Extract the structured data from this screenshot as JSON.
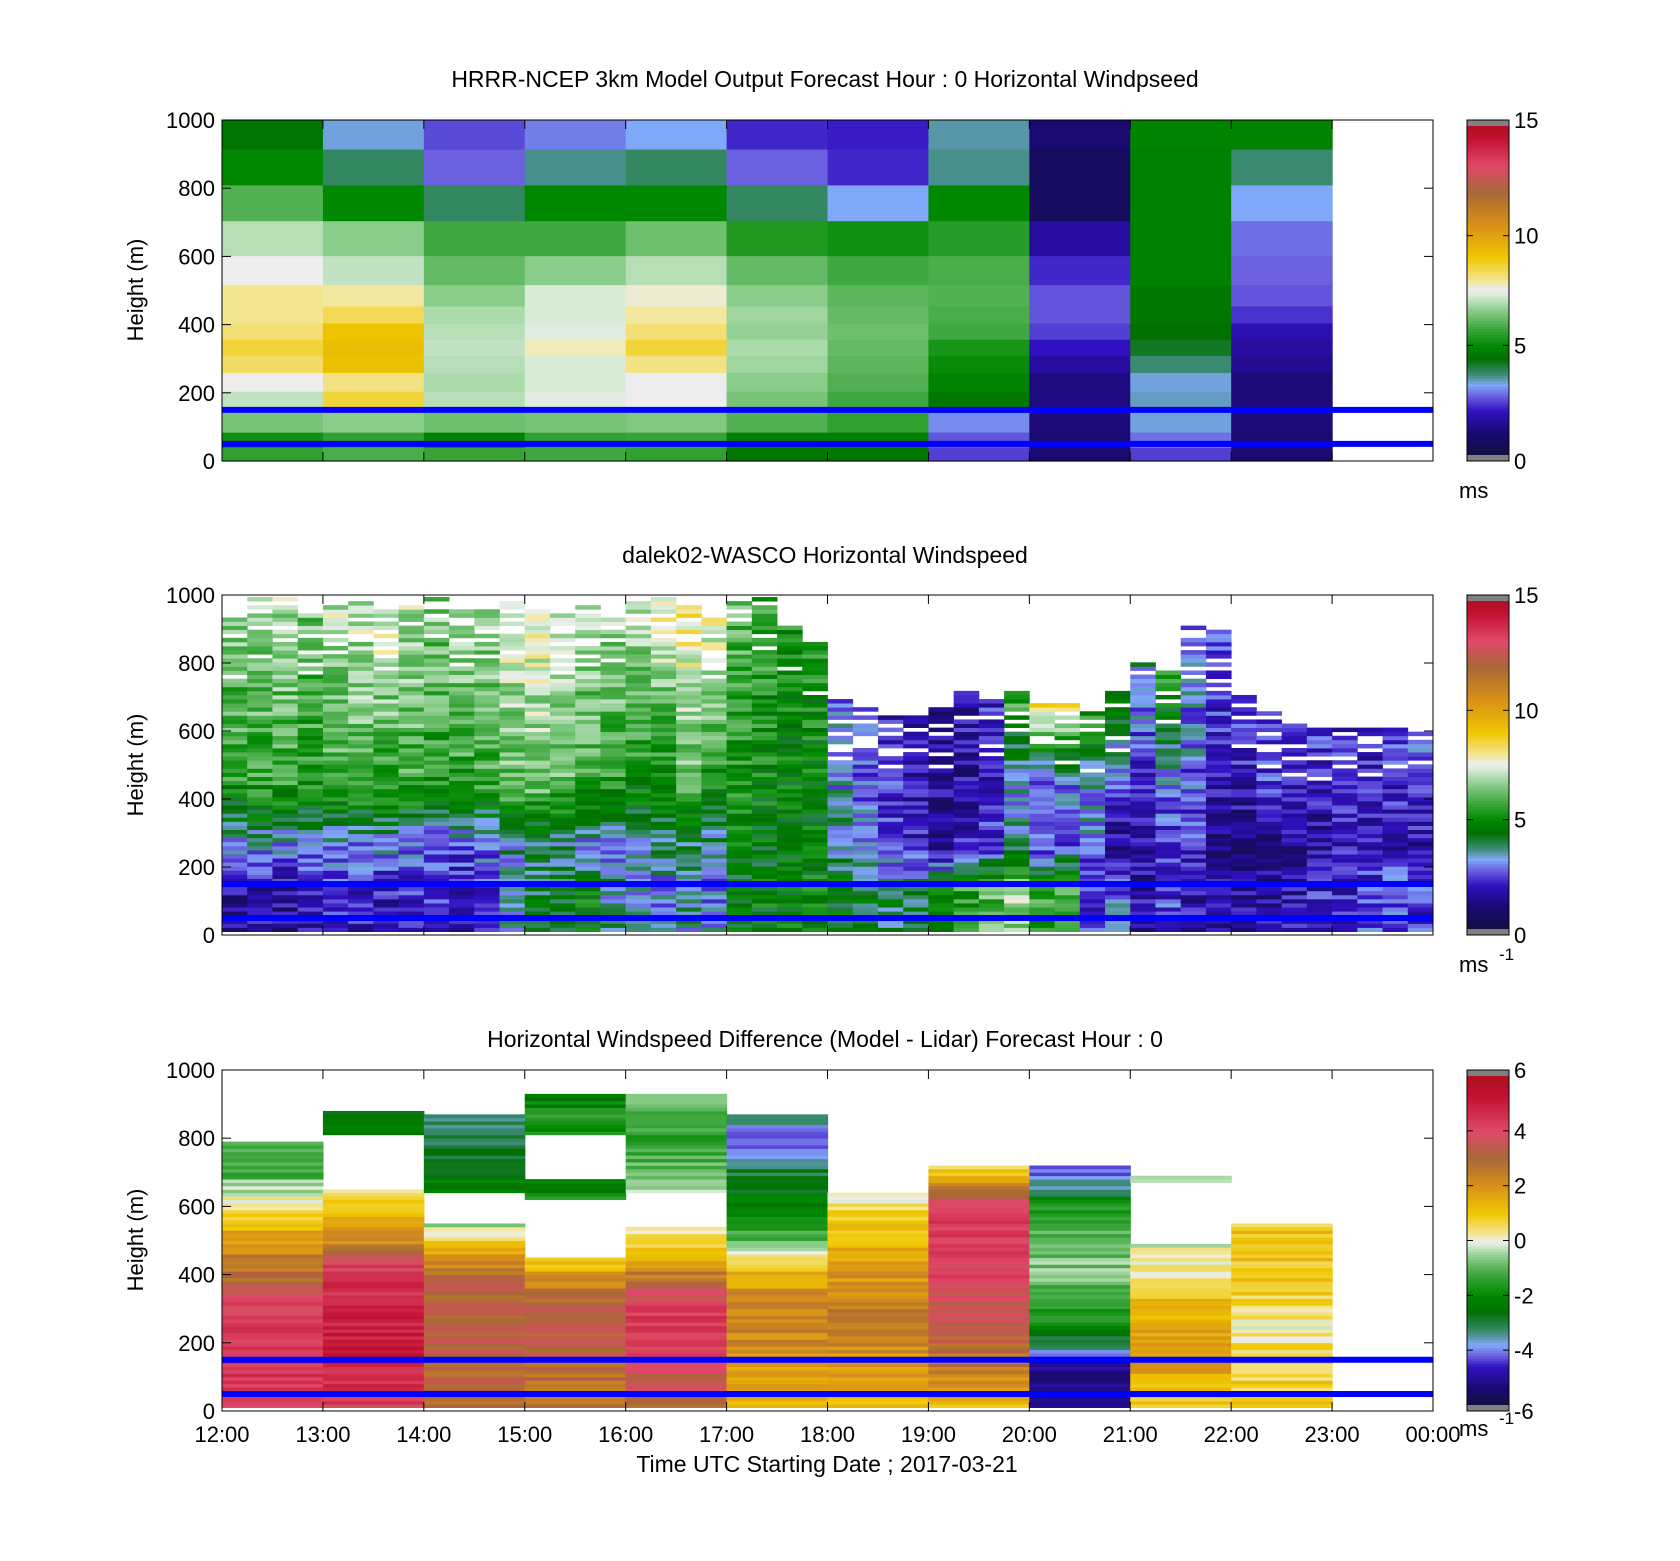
{
  "figure": {
    "xlabel": "Time UTC  Starting Date ; 2017-03-21",
    "xticks": [
      "12:00",
      "13:00",
      "14:00",
      "15:00",
      "16:00",
      "17:00",
      "18:00",
      "19:00",
      "20:00",
      "21:00",
      "22:00",
      "23:00",
      "00:00"
    ],
    "yticks": [
      "0",
      "200",
      "400",
      "600",
      "800",
      "1000"
    ],
    "reference_lines_m": [
      150,
      50
    ],
    "reference_line_color": "#0000ff"
  },
  "colormap_windspeed": [
    [
      0,
      "#101040"
    ],
    [
      1,
      "#1a0a70"
    ],
    [
      2,
      "#3010c0"
    ],
    [
      2.7,
      "#6a60e0"
    ],
    [
      3.2,
      "#80a8f8"
    ],
    [
      3.7,
      "#3a8a70"
    ],
    [
      4.4,
      "#007000"
    ],
    [
      5,
      "#008800"
    ],
    [
      5.8,
      "#40a840"
    ],
    [
      6.6,
      "#8acc8a"
    ],
    [
      7.3,
      "#d8ecd8"
    ],
    [
      7.6,
      "#ededed"
    ],
    [
      7.9,
      "#f4e8a0"
    ],
    [
      9,
      "#f0c800"
    ],
    [
      10.5,
      "#d89018"
    ],
    [
      12,
      "#a86838"
    ],
    [
      13.2,
      "#e04868"
    ],
    [
      14.5,
      "#c01030"
    ],
    [
      15,
      "#b01020"
    ]
  ],
  "colormap_difference": [
    [
      -6,
      "#101040"
    ],
    [
      -5.4,
      "#1a0a70"
    ],
    [
      -4.6,
      "#3010c0"
    ],
    [
      -4.2,
      "#6a60e0"
    ],
    [
      -3.8,
      "#80a8f8"
    ],
    [
      -3.3,
      "#3a8a70"
    ],
    [
      -2.6,
      "#007000"
    ],
    [
      -2,
      "#008800"
    ],
    [
      -1.2,
      "#40a840"
    ],
    [
      -0.6,
      "#8acc8a"
    ],
    [
      -0.15,
      "#d8ecd8"
    ],
    [
      0,
      "#ededed"
    ],
    [
      0.2,
      "#f4e8a0"
    ],
    [
      1,
      "#f0c800"
    ],
    [
      2,
      "#d89018"
    ],
    [
      3,
      "#a86838"
    ],
    [
      4,
      "#e04868"
    ],
    [
      5.3,
      "#c01030"
    ],
    [
      6,
      "#b01020"
    ]
  ],
  "panels": [
    {
      "title": "HRRR-NCEP 3km Model Output   Forecast Hour : 0 Horizontal Windpseed",
      "ylabel": "Height (m)",
      "colorbar": {
        "ticks": [
          "0",
          "5",
          "10",
          "15"
        ],
        "min": 0,
        "max": 15,
        "unit": "ms",
        "unit_sup": ""
      },
      "chart_data": {
        "type": "heatmap",
        "variable": "horizontal windspeed",
        "x_columns": [
          "12:00",
          "13:00",
          "14:00",
          "15:00",
          "16:00",
          "17:00",
          "18:00",
          "19:00",
          "20:00",
          "21:00",
          "22:00"
        ],
        "y_heights_m": [
          20,
          60,
          110,
          175,
          235,
          285,
          335,
          380,
          430,
          480,
          555,
          650,
          760,
          860,
          970
        ],
        "values": [
          [
            5.6,
            5.9,
            5.7,
            5.8,
            5.6,
            4.6,
            4.6,
            2.4,
            1.0,
            2.4,
            1.0
          ],
          [
            5.2,
            5.6,
            4.9,
            5.6,
            5.7,
            4.8,
            4.8,
            2.6,
            1.0,
            2.8,
            1.0
          ],
          [
            6.4,
            6.6,
            6.3,
            6.4,
            6.5,
            6.0,
            5.6,
            3.0,
            1.1,
            3.3,
            1.1
          ],
          [
            7.1,
            8.6,
            7.0,
            7.4,
            7.6,
            6.4,
            5.8,
            4.6,
            1.2,
            3.4,
            1.1
          ],
          [
            7.6,
            8.1,
            6.9,
            7.3,
            7.6,
            6.6,
            6.0,
            4.9,
            1.2,
            3.3,
            1.1
          ],
          [
            8.3,
            9.2,
            7.0,
            7.3,
            8.1,
            6.8,
            6.1,
            5.1,
            1.6,
            3.7,
            1.4
          ],
          [
            8.6,
            9.3,
            7.1,
            7.8,
            8.6,
            6.9,
            6.2,
            5.3,
            2.0,
            4.2,
            1.6
          ],
          [
            8.2,
            9.1,
            7.0,
            7.4,
            8.2,
            6.7,
            6.3,
            5.8,
            2.4,
            4.4,
            1.8
          ],
          [
            8.0,
            8.4,
            6.9,
            7.3,
            7.9,
            6.8,
            6.2,
            5.9,
            2.6,
            4.6,
            2.3
          ],
          [
            8.0,
            7.9,
            6.6,
            7.3,
            7.7,
            6.6,
            6.1,
            6.0,
            2.6,
            4.6,
            2.6
          ],
          [
            7.6,
            7.1,
            6.2,
            6.6,
            7.0,
            6.2,
            5.8,
            5.9,
            2.2,
            4.8,
            2.7
          ],
          [
            7.0,
            6.6,
            5.8,
            5.8,
            6.3,
            5.4,
            5.2,
            5.5,
            1.6,
            4.8,
            2.8
          ],
          [
            6.0,
            5.0,
            3.8,
            5.0,
            5.0,
            3.8,
            3.2,
            5.0,
            0.6,
            4.8,
            3.2
          ],
          [
            5.0,
            3.8,
            2.7,
            3.6,
            3.8,
            2.7,
            2.2,
            3.6,
            0.6,
            4.8,
            3.7
          ],
          [
            4.5,
            3.3,
            2.5,
            2.9,
            3.2,
            2.2,
            2.1,
            3.5,
            1.0,
            4.9,
            4.9
          ]
        ]
      }
    },
    {
      "title": "dalek02-WASCO  Horizontal Windspeed",
      "ylabel": "Height (m)",
      "colorbar": {
        "ticks": [
          "0",
          "5",
          "10",
          "15"
        ],
        "min": 0,
        "max": 15,
        "unit": "ms",
        "unit_sup": "-1"
      },
      "chart_data": {
        "type": "heatmap",
        "variable": "horizontal windspeed",
        "x_range": [
          "12:00",
          "23:50"
        ],
        "y_range_m": [
          0,
          1000
        ],
        "time_bins_per_hour": 4,
        "note_text": "",
        "column_tops_m": [
          930,
          990,
          990,
          940,
          960,
          980,
          950,
          960,
          990,
          950,
          980,
          990,
          960,
          940,
          960,
          930,
          980,
          990,
          970,
          930,
          980,
          990,
          900,
          870,
          690,
          660,
          650,
          640,
          660,
          720,
          700,
          710,
          690,
          680,
          650,
          710,
          800,
          770,
          900,
          890,
          710,
          650,
          620,
          600,
          610,
          610,
          600,
          610
        ],
        "column_speed_profile_hint": [
          [
            1.5,
            3.0,
            5.5,
            6.5
          ],
          [
            1.8,
            3.2,
            5.6,
            6.8
          ],
          [
            1.5,
            3.0,
            5.7,
            6.9
          ],
          [
            2.0,
            3.1,
            5.3,
            6.4
          ],
          [
            2.2,
            3.0,
            5.8,
            7.0
          ],
          [
            2.0,
            2.8,
            6.0,
            7.2
          ],
          [
            1.9,
            3.2,
            5.5,
            7.6
          ],
          [
            2.3,
            3.0,
            5.7,
            7.0
          ],
          [
            2.2,
            2.5,
            5.4,
            6.6
          ],
          [
            1.9,
            2.6,
            5.5,
            6.9
          ],
          [
            2.5,
            2.7,
            5.7,
            6.8
          ],
          [
            3.2,
            3.5,
            6.2,
            7.6
          ],
          [
            4.2,
            3.6,
            6.5,
            7.6
          ],
          [
            4.0,
            3.5,
            6.3,
            7.4
          ],
          [
            4.8,
            2.9,
            5.7,
            7.0
          ],
          [
            3.6,
            3.0,
            5.5,
            6.9
          ],
          [
            3.4,
            3.2,
            5.2,
            7.3
          ],
          [
            3.0,
            3.7,
            5.0,
            7.9
          ],
          [
            3.5,
            3.9,
            6.0,
            8.2
          ],
          [
            3.0,
            3.5,
            5.2,
            7.8
          ],
          [
            4.5,
            4.6,
            5.3,
            6.2
          ],
          [
            4.7,
            4.5,
            5.0,
            5.6
          ],
          [
            4.8,
            4.4,
            4.8,
            5.4
          ],
          [
            4.9,
            4.5,
            4.9,
            5.2
          ],
          [
            4.6,
            3.6,
            3.2,
            3.0
          ],
          [
            4.2,
            3.2,
            2.8,
            2.4
          ],
          [
            4.0,
            2.5,
            2.2,
            1.8
          ],
          [
            3.8,
            2.2,
            1.8,
            1.6
          ],
          [
            4.6,
            1.6,
            1.5,
            1.4
          ],
          [
            5.5,
            2.0,
            1.6,
            1.8
          ],
          [
            6.0,
            2.4,
            2.0,
            2.2
          ],
          [
            6.8,
            3.6,
            3.2,
            6.0
          ],
          [
            5.6,
            2.3,
            2.4,
            9.0
          ],
          [
            6.0,
            2.6,
            2.8,
            8.5
          ],
          [
            2.2,
            3.0,
            3.3,
            5.5
          ],
          [
            2.8,
            1.2,
            2.6,
            4.9
          ],
          [
            1.6,
            1.5,
            2.0,
            3.5
          ],
          [
            2.4,
            2.0,
            3.2,
            5.5
          ],
          [
            1.8,
            2.2,
            2.8,
            3.0
          ],
          [
            1.6,
            1.2,
            2.0,
            2.4
          ],
          [
            1.5,
            0.8,
            2.0,
            2.2
          ],
          [
            1.5,
            1.2,
            2.4,
            2.5
          ],
          [
            1.8,
            1.4,
            2.1,
            2.3
          ],
          [
            2.0,
            1.6,
            2.1,
            2.2
          ],
          [
            2.2,
            1.8,
            2.0,
            2.1
          ],
          [
            2.6,
            1.6,
            2.0,
            2.1
          ],
          [
            2.8,
            2.0,
            2.2,
            2.4
          ],
          [
            2.4,
            1.6,
            2.6,
            2.8
          ]
        ]
      }
    },
    {
      "title": "Horizontal Windspeed Difference (Model - Lidar) Forecast Hour : 0",
      "ylabel": "Height (m)",
      "colorbar": {
        "ticks": [
          "-6",
          "-4",
          "-2",
          "0",
          "2",
          "4",
          "6"
        ],
        "min": -6,
        "max": 6,
        "unit": "ms",
        "unit_sup": "-1"
      },
      "chart_data": {
        "type": "heatmap",
        "variable": "windspeed difference (model - lidar)",
        "x_columns": [
          "12:00",
          "13:00",
          "14:00",
          "15:00",
          "16:00",
          "17:00",
          "18:00",
          "19:00",
          "20:00",
          "21:00",
          "22:00"
        ],
        "column_tops_m": [
          790,
          880,
          870,
          930,
          930,
          870,
          640,
          720,
          720,
          690,
          550
        ],
        "column_gaps_m": [
          [],
          [
            [
              650,
              810
            ]
          ],
          [
            [
              550,
              640
            ]
          ],
          [
            [
              450,
              620
            ],
            [
              680,
              810
            ]
          ],
          [
            [
              540,
              640
            ]
          ],
          [],
          [],
          [],
          [],
          [
            [
              490,
              670
            ]
          ],
          []
        ],
        "profiles": [
          [
            [
              0,
              4.2
            ],
            [
              150,
              4.5
            ],
            [
              330,
              4.0
            ],
            [
              380,
              3.0
            ],
            [
              480,
              2.0
            ],
            [
              560,
              1.0
            ],
            [
              620,
              0.2
            ],
            [
              680,
              -1.0
            ],
            [
              790,
              -1.5
            ]
          ],
          [
            [
              0,
              4.0
            ],
            [
              150,
              5.0
            ],
            [
              300,
              5.0
            ],
            [
              420,
              4.2
            ],
            [
              500,
              2.0
            ],
            [
              600,
              0.8
            ],
            [
              650,
              0.0
            ],
            [
              810,
              -2.0
            ],
            [
              880,
              -2.4
            ]
          ],
          [
            [
              0,
              3.0
            ],
            [
              150,
              3.2
            ],
            [
              300,
              3.3
            ],
            [
              400,
              2.8
            ],
            [
              480,
              1.2
            ],
            [
              550,
              -0.6
            ],
            [
              640,
              -2.0
            ],
            [
              800,
              -3.0
            ],
            [
              870,
              -3.4
            ]
          ],
          [
            [
              0,
              2.6
            ],
            [
              150,
              3.0
            ],
            [
              300,
              3.4
            ],
            [
              380,
              2.2
            ],
            [
              450,
              0.5
            ],
            [
              620,
              -1.8
            ],
            [
              680,
              -2.2
            ],
            [
              860,
              -1.6
            ],
            [
              930,
              -2.4
            ]
          ],
          [
            [
              0,
              3.0
            ],
            [
              150,
              4.0
            ],
            [
              300,
              4.4
            ],
            [
              400,
              2.4
            ],
            [
              480,
              1.0
            ],
            [
              540,
              0.2
            ],
            [
              640,
              -0.4
            ],
            [
              800,
              -1.6
            ],
            [
              930,
              -0.6
            ]
          ],
          [
            [
              0,
              1.2
            ],
            [
              150,
              2.0
            ],
            [
              300,
              2.4
            ],
            [
              420,
              1.2
            ],
            [
              480,
              -0.8
            ],
            [
              600,
              -2.2
            ],
            [
              700,
              -3.0
            ],
            [
              800,
              -4.2
            ],
            [
              870,
              -3.2
            ]
          ],
          [
            [
              0,
              1.0
            ],
            [
              150,
              2.0
            ],
            [
              300,
              2.4
            ],
            [
              450,
              1.6
            ],
            [
              560,
              1.0
            ],
            [
              640,
              0.0
            ]
          ],
          [
            [
              0,
              1.2
            ],
            [
              150,
              2.8
            ],
            [
              300,
              3.6
            ],
            [
              450,
              4.2
            ],
            [
              560,
              4.3
            ],
            [
              640,
              3.0
            ],
            [
              700,
              0.8
            ],
            [
              720,
              0.2
            ]
          ],
          [
            [
              0,
              -5.5
            ],
            [
              150,
              -5.0
            ],
            [
              200,
              -2.8
            ],
            [
              300,
              -1.2
            ],
            [
              400,
              -0.7
            ],
            [
              500,
              -0.8
            ],
            [
              600,
              -1.8
            ],
            [
              650,
              -3.6
            ],
            [
              720,
              -4.5
            ]
          ],
          [
            [
              0,
              1.0
            ],
            [
              150,
              1.8
            ],
            [
              310,
              1.4
            ],
            [
              380,
              0.3
            ],
            [
              480,
              -0.2
            ],
            [
              670,
              0.0
            ],
            [
              690,
              0.0
            ]
          ],
          [
            [
              0,
              1.0
            ],
            [
              150,
              0.6
            ],
            [
              250,
              0.2
            ],
            [
              350,
              0.9
            ],
            [
              450,
              1.0
            ],
            [
              530,
              1.2
            ],
            [
              550,
              0.0
            ]
          ]
        ]
      }
    }
  ]
}
